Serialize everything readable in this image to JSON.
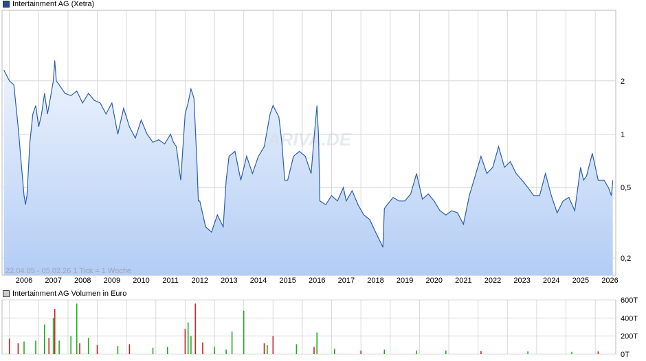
{
  "chart_data": [
    {
      "type": "area",
      "legend": {
        "label": "Intertainment AG (Xetra)"
      },
      "x_tick_labels": [
        "2006",
        "2007",
        "2008",
        "2009",
        "2010",
        "2011",
        "2012",
        "2013",
        "2014",
        "2015",
        "2016",
        "2017",
        "2018",
        "2019",
        "2020",
        "2021",
        "2022",
        "2023",
        "2024",
        "2025",
        "2026"
      ],
      "y_scale": "log",
      "ylim": [
        0.16,
        5.0
      ],
      "y_ticks": [
        {
          "value": 2,
          "label": "2"
        },
        {
          "value": 1,
          "label": "1"
        },
        {
          "value": 0.5,
          "label": "0,5"
        },
        {
          "value": 0.2,
          "label": "0,2"
        }
      ],
      "range_note": "22.04.05 - 05.02.26   1 Tick = 1 Woche",
      "watermark": "ARIVA.DE",
      "grid": true,
      "series_color": "#2a5db0",
      "fill_color": "#c2d6f7",
      "x": [
        2005.31,
        2005.5,
        2005.65,
        2005.8,
        2005.9,
        2006.0,
        2006.05,
        2006.1,
        2006.2,
        2006.3,
        2006.4,
        2006.5,
        2006.6,
        2006.7,
        2006.8,
        2006.9,
        2007.0,
        2007.05,
        2007.1,
        2007.2,
        2007.4,
        2007.6,
        2007.8,
        2008.0,
        2008.2,
        2008.4,
        2008.6,
        2008.8,
        2009.0,
        2009.2,
        2009.4,
        2009.6,
        2009.8,
        2010.0,
        2010.2,
        2010.4,
        2010.6,
        2010.8,
        2011.0,
        2011.1,
        2011.2,
        2011.35,
        2011.5,
        2011.6,
        2011.7,
        2011.8,
        2011.9,
        2011.95,
        2012.0,
        2012.2,
        2012.4,
        2012.6,
        2012.8,
        2012.9,
        2013.0,
        2013.2,
        2013.4,
        2013.6,
        2013.8,
        2014.0,
        2014.2,
        2014.4,
        2014.5,
        2014.7,
        2014.8,
        2014.9,
        2015.0,
        2015.2,
        2015.4,
        2015.6,
        2015.8,
        2015.9,
        2016.0,
        2016.05,
        2016.1,
        2016.3,
        2016.5,
        2016.7,
        2016.9,
        2017.0,
        2017.2,
        2017.4,
        2017.6,
        2017.8,
        2018.0,
        2018.2,
        2018.25,
        2018.3,
        2018.4,
        2018.6,
        2018.8,
        2019.0,
        2019.2,
        2019.4,
        2019.6,
        2019.8,
        2020.0,
        2020.2,
        2020.4,
        2020.6,
        2020.8,
        2021.0,
        2021.2,
        2021.4,
        2021.6,
        2021.8,
        2022.0,
        2022.2,
        2022.4,
        2022.6,
        2022.8,
        2023.0,
        2023.2,
        2023.4,
        2023.6,
        2023.8,
        2024.0,
        2024.2,
        2024.4,
        2024.6,
        2024.8,
        2025.0,
        2025.1,
        2025.2,
        2025.4,
        2025.6,
        2025.8,
        2025.95,
        2026.05,
        2026.1
      ],
      "y": [
        2.3,
        2.0,
        1.9,
        1.1,
        0.7,
        0.45,
        0.4,
        0.45,
        0.9,
        1.3,
        1.45,
        1.1,
        1.3,
        1.7,
        1.3,
        1.6,
        2.0,
        2.6,
        2.0,
        1.9,
        1.7,
        1.65,
        1.75,
        1.5,
        1.7,
        1.55,
        1.5,
        1.3,
        1.5,
        1.0,
        1.4,
        1.1,
        0.95,
        1.2,
        1.0,
        0.9,
        0.93,
        0.88,
        1.0,
        0.9,
        0.85,
        0.55,
        1.3,
        1.5,
        1.8,
        1.6,
        0.7,
        0.42,
        0.42,
        0.3,
        0.28,
        0.35,
        0.3,
        0.55,
        0.75,
        0.8,
        0.55,
        0.75,
        0.6,
        0.75,
        0.85,
        1.3,
        1.45,
        1.25,
        0.9,
        0.55,
        0.55,
        0.75,
        0.8,
        0.75,
        0.6,
        0.95,
        1.45,
        1.0,
        0.42,
        0.4,
        0.45,
        0.42,
        0.5,
        0.42,
        0.48,
        0.4,
        0.35,
        0.33,
        0.28,
        0.24,
        0.23,
        0.38,
        0.4,
        0.44,
        0.42,
        0.42,
        0.46,
        0.6,
        0.43,
        0.46,
        0.42,
        0.37,
        0.35,
        0.37,
        0.36,
        0.31,
        0.45,
        0.58,
        0.75,
        0.6,
        0.65,
        0.85,
        0.65,
        0.7,
        0.6,
        0.55,
        0.5,
        0.45,
        0.45,
        0.6,
        0.45,
        0.36,
        0.42,
        0.44,
        0.37,
        0.65,
        0.55,
        0.58,
        0.78,
        0.55,
        0.55,
        0.5,
        0.45,
        0.55
      ]
    },
    {
      "type": "bar",
      "legend": {
        "label": "Intertainment AG Volumen in Euro"
      },
      "y_ticks": [
        {
          "value": 600,
          "label": "600T"
        },
        {
          "value": 400,
          "label": "400T"
        },
        {
          "value": 200,
          "label": "200T"
        },
        {
          "value": 0,
          "label": "0T"
        }
      ],
      "ylim": [
        0,
        600
      ],
      "unit": "T (thousand Euro)",
      "grid": true,
      "colors": {
        "up": "#22aa22",
        "down": "#cc2222"
      },
      "x": [
        2005.5,
        2005.8,
        2006.0,
        2006.4,
        2006.7,
        2006.85,
        2007.0,
        2007.05,
        2007.2,
        2007.6,
        2007.8,
        2007.9,
        2008.2,
        2008.5,
        2009.2,
        2009.6,
        2010.4,
        2010.9,
        2011.5,
        2011.6,
        2011.7,
        2011.85,
        2012.1,
        2012.5,
        2012.9,
        2013.1,
        2013.5,
        2014.2,
        2014.3,
        2014.5,
        2015.3,
        2015.9,
        2016.0,
        2016.6,
        2017.5,
        2018.3,
        2019.4,
        2020.4,
        2021.6,
        2023.2,
        2024.7,
        2025.6
      ],
      "values": [
        170,
        120,
        140,
        150,
        330,
        180,
        400,
        500,
        150,
        200,
        560,
        120,
        180,
        100,
        90,
        110,
        70,
        80,
        280,
        350,
        200,
        560,
        130,
        80,
        50,
        250,
        480,
        120,
        100,
        200,
        110,
        80,
        240,
        60,
        40,
        50,
        40,
        40,
        35,
        30,
        25,
        30
      ],
      "up": [
        false,
        false,
        true,
        true,
        true,
        false,
        true,
        false,
        true,
        true,
        true,
        false,
        true,
        false,
        true,
        false,
        true,
        true,
        false,
        true,
        true,
        false,
        false,
        true,
        true,
        true,
        true,
        false,
        true,
        false,
        true,
        false,
        true,
        true,
        false,
        true,
        true,
        true,
        false,
        true,
        true,
        false
      ]
    }
  ]
}
